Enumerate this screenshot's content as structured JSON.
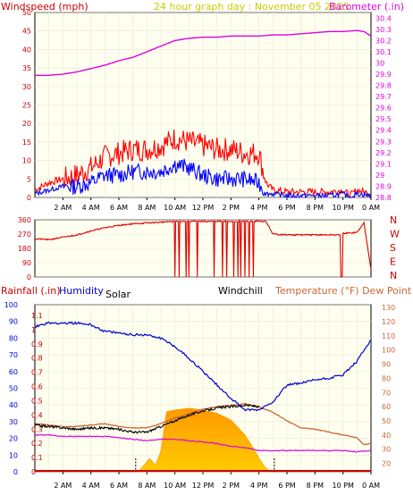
{
  "colors": {
    "wind_avg": "#0000ff",
    "wind_gust": "#ff0000",
    "barometer": "#dd00dd",
    "direction": "#dd0000",
    "humidity": "#0000cc",
    "rainfall": "#cc0000",
    "temperature": "#cc6633",
    "dewpoint": "#dd00dd",
    "windchill": "#000000",
    "solar_fill": "#ffcc00",
    "solar_edge": "#ff9900",
    "grid": "#ffffff",
    "plot_bg": "#fffff0"
  },
  "chart_data": [
    {
      "type": "line",
      "title": "24 hour graph day : November 05 2025",
      "ylabel_left": "Windspeed (mph)",
      "ylabel_right": "Barometer (.in)",
      "x_ticks": [
        "2 AM",
        "4 AM",
        "6 AM",
        "8 AM",
        "10 AM",
        "12 PM",
        "2 PM",
        "4 PM",
        "6 PM",
        "8 PM",
        "10 PM",
        "0 AM"
      ],
      "y_left_ticks": [
        0,
        5,
        10,
        15,
        20,
        25,
        30,
        35,
        40,
        45,
        50
      ],
      "y_right_ticks": [
        "28.8",
        "28.9",
        "29",
        "29.1",
        "29.2",
        "29.3",
        "29.4",
        "29.5",
        "29.6",
        "29.7",
        "29.8",
        "29.9",
        "30",
        "30.1",
        "30.2",
        "30.3",
        "30.4"
      ],
      "ylim_left": [
        0,
        50
      ],
      "ylim_right": [
        28.8,
        30.45
      ],
      "xlim": [
        0,
        24
      ],
      "series": [
        {
          "key": "gust",
          "x": [
            0,
            1,
            2,
            3,
            4,
            5,
            6,
            7,
            8,
            9,
            10,
            11,
            12,
            13,
            14,
            15,
            16,
            16.5,
            17,
            18,
            19,
            20,
            21,
            22,
            22.5,
            23,
            24
          ],
          "y": [
            2,
            4,
            5,
            6,
            8,
            11,
            12,
            13,
            13,
            14,
            16,
            15,
            14,
            13,
            13,
            12,
            12,
            4,
            2,
            1.5,
            1.5,
            1.5,
            1.5,
            2,
            0.5,
            2,
            1
          ]
        },
        {
          "key": "avg",
          "x": [
            0,
            1,
            2,
            3,
            4,
            5,
            6,
            7,
            8,
            9,
            10,
            11,
            12,
            13,
            14,
            15,
            16,
            16.5,
            17,
            18,
            19,
            20,
            21,
            22,
            22.5,
            23,
            24
          ],
          "y": [
            1,
            2,
            3,
            3,
            4,
            6,
            6,
            7,
            7,
            7,
            9,
            8,
            6,
            5,
            5,
            5,
            4,
            1,
            1,
            0.5,
            0.5,
            0.5,
            0.5,
            1,
            0,
            1,
            0.5
          ]
        },
        {
          "key": "barometer",
          "x": [
            0,
            1,
            2,
            3,
            4,
            5,
            6,
            7,
            8,
            9,
            10,
            11,
            12,
            13,
            14,
            15,
            16,
            17,
            18,
            19,
            20,
            21,
            22,
            23,
            23.5,
            24
          ],
          "y": [
            29.89,
            29.89,
            29.9,
            29.92,
            29.95,
            29.98,
            30.02,
            30.05,
            30.1,
            30.15,
            30.2,
            30.22,
            30.23,
            30.23,
            30.24,
            30.24,
            30.24,
            30.25,
            30.25,
            30.26,
            30.27,
            30.28,
            30.28,
            30.29,
            30.28,
            30.24
          ]
        }
      ]
    },
    {
      "type": "line",
      "right_labels": [
        "N",
        "W",
        "S",
        "E",
        "N"
      ],
      "y_ticks": [
        0,
        90,
        180,
        270,
        360
      ],
      "ylim": [
        0,
        360
      ],
      "xlim": [
        0,
        24
      ],
      "series": [
        {
          "key": "direction",
          "x": [
            0,
            1,
            2,
            3,
            4,
            5,
            6,
            7,
            8,
            9,
            10,
            11,
            12,
            13,
            14,
            15,
            16,
            16.5,
            17,
            18,
            19,
            20,
            21,
            21.8,
            22,
            23,
            23.5,
            24
          ],
          "y": [
            240,
            235,
            250,
            265,
            290,
            310,
            325,
            335,
            340,
            345,
            350,
            350,
            350,
            350,
            350,
            350,
            350,
            350,
            270,
            265,
            265,
            265,
            265,
            265,
            275,
            280,
            340,
            50
          ]
        }
      ]
    },
    {
      "type": "line",
      "ylabel_rainfall": "Rainfall (.in)",
      "ylabel_humidity": "Humidity",
      "label_solar": "Solar",
      "label_windchill": "Windchill",
      "ylabel_right": "Temperature (°F) Dew Point (°F)",
      "x_ticks": [
        "2 AM",
        "4 AM",
        "6 AM",
        "8 AM",
        "10 AM",
        "12 PM",
        "2 PM",
        "4 PM",
        "6 PM",
        "8 PM",
        "10 PM",
        "0 AM"
      ],
      "humidity_ticks": [
        0,
        10,
        20,
        30,
        40,
        50,
        60,
        70,
        80,
        90,
        100
      ],
      "rain_ticks": [
        "0",
        "0.1",
        "0.2",
        "0.3",
        "0.4",
        "0.5",
        "0.6",
        "0.7",
        "0.8",
        "0.9",
        "1",
        "1.1"
      ],
      "temp_ticks": [
        20,
        30,
        40,
        50,
        60,
        70,
        80,
        90,
        100,
        110,
        120,
        130
      ],
      "ylim_humidity": [
        0,
        100
      ],
      "ylim_temp": [
        14,
        132
      ],
      "xlim": [
        0,
        24
      ],
      "series": [
        {
          "key": "humidity",
          "x": [
            0,
            1,
            2,
            3,
            4,
            5,
            6,
            7,
            8,
            9,
            10,
            11,
            12,
            13,
            14,
            15,
            15.5,
            16,
            17,
            18,
            19,
            20,
            21,
            22,
            23,
            24
          ],
          "y": [
            87,
            89,
            89,
            89,
            88,
            84,
            83,
            82,
            82,
            80,
            75,
            68,
            60,
            52,
            44,
            37,
            37,
            37,
            42,
            52,
            53,
            55,
            56,
            58,
            66,
            79
          ]
        },
        {
          "key": "temperature",
          "x": [
            0,
            1,
            2,
            3,
            4,
            5,
            6,
            7,
            8,
            9,
            10,
            11,
            12,
            13,
            14,
            15,
            16,
            17,
            18,
            19,
            20,
            21,
            22,
            23,
            23.5,
            24
          ],
          "y": [
            48,
            47,
            46,
            46,
            47,
            48,
            46,
            45,
            45,
            48,
            52,
            55,
            58,
            60,
            61,
            62,
            60,
            56,
            50,
            45,
            44,
            42,
            40,
            38,
            33,
            34
          ]
        },
        {
          "key": "windchill",
          "x": [
            0,
            1,
            2,
            3,
            4,
            5,
            6,
            7,
            8,
            9,
            10,
            11,
            12,
            13,
            14,
            15,
            16
          ],
          "y": [
            47,
            46,
            45,
            44,
            45,
            45,
            44,
            42,
            42,
            46,
            50,
            54,
            57,
            59,
            60,
            61,
            60
          ]
        },
        {
          "key": "dewpoint",
          "x": [
            0,
            1,
            2,
            3,
            4,
            5,
            6,
            7,
            8,
            9,
            10,
            11,
            12,
            13,
            14,
            15,
            16,
            17,
            18,
            19,
            20,
            21,
            22,
            23,
            24
          ],
          "y": [
            40,
            40,
            39,
            39,
            39,
            39,
            38,
            37,
            36,
            37,
            37,
            36,
            35,
            34,
            32,
            31,
            29,
            29,
            29,
            29,
            29,
            29,
            29,
            28,
            29
          ]
        },
        {
          "key": "solar",
          "x": [
            7.4,
            7.8,
            8.2,
            8.6,
            9.0,
            9.4,
            10,
            11,
            12,
            13,
            14,
            15,
            15.6,
            16,
            16.4,
            16.8
          ],
          "y": [
            0,
            4,
            8,
            4,
            12,
            36,
            37,
            38,
            37,
            35,
            31,
            22,
            14,
            8,
            3,
            0
          ]
        }
      ]
    }
  ]
}
